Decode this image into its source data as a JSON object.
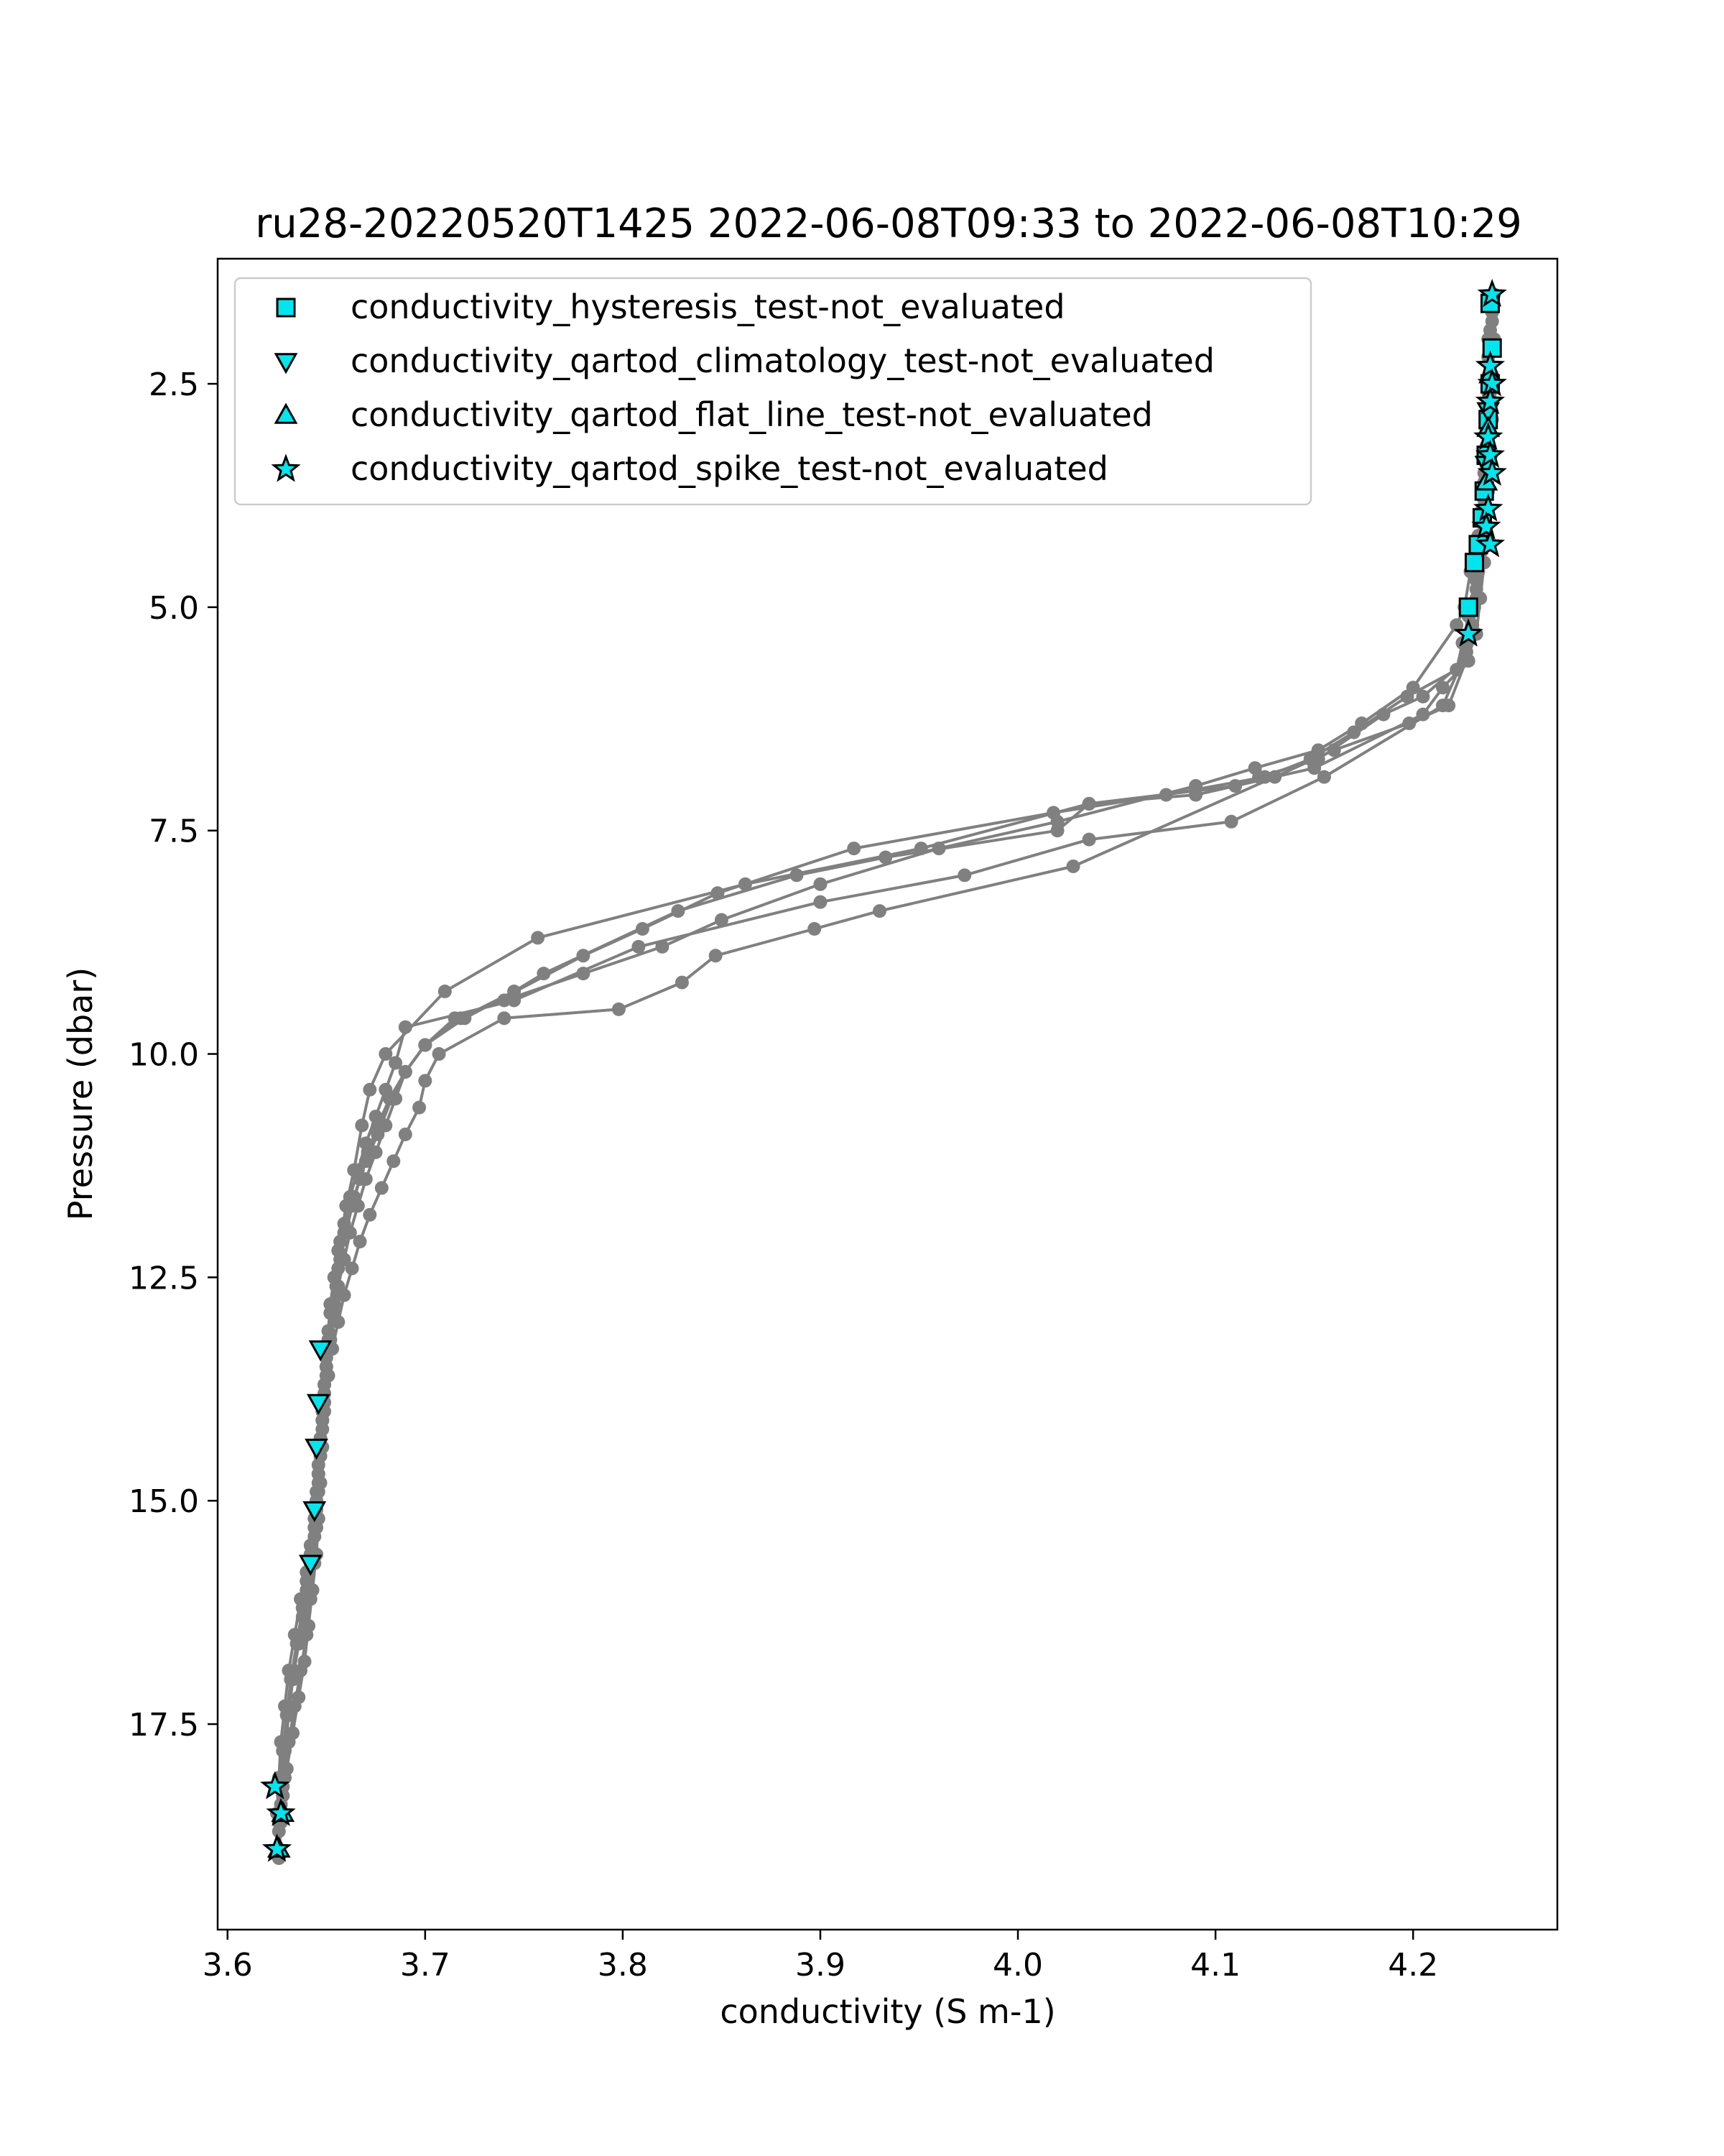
{
  "chart_data": {
    "type": "line",
    "title": "ru28-20220520T1425 2022-06-08T09:33 to 2022-06-08T10:29",
    "xlabel": "conductivity (S m-1)",
    "ylabel": "Pressure (dbar)",
    "xlim": [
      3.595,
      4.273
    ],
    "ylim": [
      19.8,
      1.1
    ],
    "y_inverted": true,
    "x_ticks": [
      3.6,
      3.7,
      3.8,
      3.9,
      4.0,
      4.1,
      4.2
    ],
    "x_tick_labels": [
      "3.6",
      "3.7",
      "3.8",
      "3.9",
      "4.0",
      "4.1",
      "4.2"
    ],
    "y_ticks": [
      2.5,
      5.0,
      7.5,
      10.0,
      12.5,
      15.0,
      17.5
    ],
    "y_tick_labels": [
      "2.5",
      "5.0",
      "7.5",
      "10.0",
      "12.5",
      "15.0",
      "17.5"
    ],
    "grid": false,
    "legend_position": "top-left",
    "colors": {
      "profile_line": "#808080",
      "flag_fill": "#00e5ee",
      "flag_edge": "#000000"
    },
    "profiles": [
      {
        "x": [
          4.239,
          4.238,
          4.238,
          4.237,
          4.237,
          4.236,
          4.233,
          4.229,
          4.226,
          4.222,
          4.2,
          4.174,
          4.152,
          4.12,
          4.09,
          4.02,
          3.96,
          3.9,
          3.85,
          3.82,
          3.78,
          3.74,
          3.715,
          3.7,
          3.69,
          3.685,
          3.68,
          3.675,
          3.67,
          3.666,
          3.662,
          3.659,
          3.656,
          3.654,
          3.652,
          3.65,
          3.649,
          3.648,
          3.647,
          3.646,
          3.645,
          3.644,
          3.642,
          3.64,
          3.638,
          3.636,
          3.633,
          3.63,
          3.628,
          3.627,
          3.626,
          3.626
        ],
        "y": [
          1.6,
          2.2,
          2.6,
          3.0,
          3.4,
          3.8,
          4.2,
          4.6,
          5.0,
          5.2,
          5.9,
          6.3,
          6.6,
          6.8,
          7.0,
          7.4,
          7.7,
          8.1,
          8.5,
          8.8,
          9.1,
          9.4,
          9.6,
          9.9,
          10.2,
          10.5,
          10.8,
          11.1,
          11.4,
          11.7,
          12.0,
          12.3,
          12.6,
          12.9,
          13.2,
          13.5,
          13.8,
          14.1,
          14.4,
          14.7,
          15.0,
          15.3,
          15.6,
          15.9,
          16.2,
          16.6,
          17.0,
          17.4,
          17.8,
          18.2,
          18.6,
          18.9
        ]
      },
      {
        "x": [
          4.24,
          4.24,
          4.239,
          4.238,
          4.237,
          4.236,
          4.234,
          4.232,
          4.23,
          4.228,
          4.215,
          4.205,
          4.15,
          4.09,
          4.036,
          3.951,
          3.862,
          3.757,
          3.71,
          3.68,
          3.672,
          3.668,
          3.664,
          3.66,
          3.657,
          3.654,
          3.652,
          3.65,
          3.649,
          3.648,
          3.647,
          3.646,
          3.645,
          3.644,
          3.642,
          3.64,
          3.637,
          3.634,
          3.631,
          3.629,
          3.627,
          3.626,
          3.626
        ],
        "y": [
          1.8,
          2.4,
          2.9,
          3.3,
          3.7,
          4.1,
          4.5,
          4.9,
          5.3,
          5.6,
          5.9,
          6.2,
          6.8,
          7.1,
          7.2,
          7.7,
          8.1,
          8.7,
          9.3,
          10.0,
          10.4,
          10.8,
          11.3,
          11.7,
          12.1,
          12.5,
          12.9,
          13.3,
          13.7,
          14.1,
          14.5,
          14.9,
          15.3,
          15.7,
          16.1,
          16.5,
          16.9,
          17.3,
          17.7,
          18.1,
          18.4,
          18.7,
          19.0
        ]
      },
      {
        "x": [
          4.238,
          4.238,
          4.237,
          4.236,
          4.235,
          4.234,
          4.232,
          4.228,
          4.225,
          4.222,
          4.197,
          4.17,
          4.148,
          4.125,
          4.075,
          4.018,
          3.917,
          3.848,
          3.81,
          3.78,
          3.72,
          3.7,
          3.69,
          3.683,
          3.676,
          3.67,
          3.664,
          3.659,
          3.656,
          3.654,
          3.652,
          3.65,
          3.649,
          3.648,
          3.647,
          3.646,
          3.645,
          3.643,
          3.641,
          3.639,
          3.636,
          3.633,
          3.63,
          3.628,
          3.627,
          3.626
        ],
        "y": [
          2.0,
          2.5,
          3.0,
          3.5,
          3.9,
          4.3,
          4.7,
          5.1,
          5.4,
          5.7,
          6.0,
          6.4,
          6.7,
          6.9,
          7.1,
          7.3,
          7.7,
          8.2,
          8.6,
          8.9,
          9.6,
          9.9,
          10.2,
          10.5,
          10.9,
          11.2,
          11.6,
          12.0,
          12.4,
          12.8,
          13.2,
          13.6,
          14.0,
          14.4,
          14.8,
          15.2,
          15.6,
          16.0,
          16.4,
          16.8,
          17.2,
          17.6,
          18.0,
          18.3,
          18.6,
          18.9
        ]
      },
      {
        "x": [
          4.24,
          4.24,
          4.239,
          4.238,
          4.237,
          4.236,
          4.235,
          4.233,
          4.231,
          4.229,
          4.226,
          4.205,
          4.185,
          4.152,
          4.122,
          4.11,
          4.036,
          4.02,
          3.933,
          3.888,
          3.828,
          3.76,
          3.745,
          3.718,
          3.7,
          3.69,
          3.682,
          3.676,
          3.671,
          3.667,
          3.663,
          3.66,
          3.657,
          3.655,
          3.653,
          3.651,
          3.65,
          3.649,
          3.648,
          3.647,
          3.646,
          3.645,
          3.644,
          3.642,
          3.64,
          3.638,
          3.635,
          3.632,
          3.63,
          3.628,
          3.627,
          3.626
        ],
        "y": [
          1.7,
          2.1,
          2.6,
          3.0,
          3.4,
          3.8,
          4.2,
          4.6,
          5.0,
          5.3,
          5.6,
          6.0,
          6.2,
          6.7,
          6.9,
          7.0,
          7.2,
          7.5,
          7.8,
          8.0,
          8.4,
          9.1,
          9.3,
          9.6,
          9.9,
          10.2,
          10.5,
          10.8,
          11.1,
          11.4,
          11.7,
          12.0,
          12.3,
          12.6,
          12.9,
          13.2,
          13.5,
          13.8,
          14.1,
          14.4,
          14.7,
          15.0,
          15.3,
          15.6,
          15.9,
          16.2,
          16.6,
          17.0,
          17.4,
          17.8,
          18.2,
          18.6
        ]
      },
      {
        "x": [
          4.239,
          4.239,
          4.238,
          4.237,
          4.236,
          4.235,
          4.234,
          4.232,
          4.23,
          4.227,
          4.215,
          4.155,
          4.108,
          4.036,
          3.973,
          3.9,
          3.808,
          3.745,
          3.69,
          3.685,
          3.68,
          3.675,
          3.67,
          3.666,
          3.662,
          3.659,
          3.656,
          3.654,
          3.652,
          3.651,
          3.65,
          3.649,
          3.648,
          3.647,
          3.646,
          3.645,
          3.644,
          3.642,
          3.64,
          3.637,
          3.634,
          3.631,
          3.629,
          3.627,
          3.626,
          3.625
        ],
        "y": [
          1.9,
          2.3,
          2.8,
          3.2,
          3.6,
          4.0,
          4.4,
          4.8,
          5.2,
          5.5,
          6.1,
          6.9,
          7.4,
          7.6,
          8.0,
          8.3,
          8.8,
          9.4,
          9.7,
          10.1,
          10.4,
          10.7,
          11.0,
          11.3,
          11.6,
          11.9,
          12.2,
          12.5,
          12.8,
          13.1,
          13.4,
          13.7,
          14.0,
          14.3,
          14.6,
          14.9,
          15.2,
          15.5,
          15.8,
          16.1,
          16.5,
          16.9,
          17.3,
          17.7,
          18.1,
          18.5
        ]
      },
      {
        "x": [
          4.241,
          4.241,
          4.24,
          4.24,
          4.239,
          4.238,
          4.237,
          4.236,
          4.234,
          4.232,
          4.218,
          4.198,
          4.16,
          4.13,
          4.028,
          3.93,
          3.897,
          3.847,
          3.83,
          3.798,
          3.74,
          3.707,
          3.7,
          3.697,
          3.69,
          3.684,
          3.678,
          3.672,
          3.667,
          3.663,
          3.659,
          3.656,
          3.653,
          3.651,
          3.649,
          3.648,
          3.647,
          3.646,
          3.645,
          3.644,
          3.642,
          3.64,
          3.638,
          3.636,
          3.633,
          3.631,
          3.629,
          3.628,
          3.627,
          3.626
        ],
        "y": [
          1.5,
          2.0,
          2.5,
          2.9,
          3.3,
          3.7,
          4.1,
          4.5,
          4.9,
          5.3,
          6.1,
          6.3,
          6.6,
          6.9,
          7.9,
          8.4,
          8.6,
          8.9,
          9.2,
          9.5,
          9.6,
          10.0,
          10.3,
          10.6,
          10.9,
          11.2,
          11.5,
          11.8,
          12.1,
          12.4,
          12.7,
          13.0,
          13.3,
          13.6,
          13.9,
          14.2,
          14.5,
          14.8,
          15.1,
          15.4,
          15.7,
          16.0,
          16.3,
          16.6,
          17.0,
          17.4,
          17.8,
          18.2,
          18.6,
          19.0
        ]
      }
    ],
    "series": [
      {
        "name": "conductivity_hysteresis_test-not_evaluated",
        "marker": "square",
        "x": [
          4.239,
          4.24,
          4.239,
          4.238,
          4.237,
          4.236,
          4.235,
          4.233,
          4.231,
          4.228
        ],
        "y": [
          1.6,
          2.1,
          2.5,
          2.9,
          3.3,
          3.7,
          4.0,
          4.3,
          4.5,
          5.0
        ]
      },
      {
        "name": "conductivity_qartod_climatology_test-not_evaluated",
        "marker": "triangle-down",
        "x": [
          4.238,
          4.237,
          3.647,
          3.646,
          3.645,
          3.644,
          3.642
        ],
        "y": [
          2.8,
          3.4,
          13.3,
          13.9,
          14.4,
          15.1,
          15.7
        ]
      },
      {
        "name": "conductivity_qartod_flat_line_test-not_evaluated",
        "marker": "triangle-up",
        "x": [
          4.239,
          4.238,
          4.237,
          3.628,
          3.626
        ],
        "y": [
          2.4,
          3.0,
          3.6,
          18.5,
          18.9
        ]
      },
      {
        "name": "conductivity_qartod_spike_test-not_evaluated",
        "marker": "star",
        "x": [
          4.24,
          4.239,
          4.24,
          4.239,
          4.238,
          4.239,
          4.24,
          4.238,
          4.237,
          4.239,
          4.228,
          3.624,
          3.627,
          3.625
        ],
        "y": [
          1.5,
          2.3,
          2.5,
          2.7,
          3.1,
          3.3,
          3.5,
          3.9,
          4.1,
          4.3,
          5.3,
          18.2,
          18.5,
          18.9
        ]
      }
    ]
  }
}
